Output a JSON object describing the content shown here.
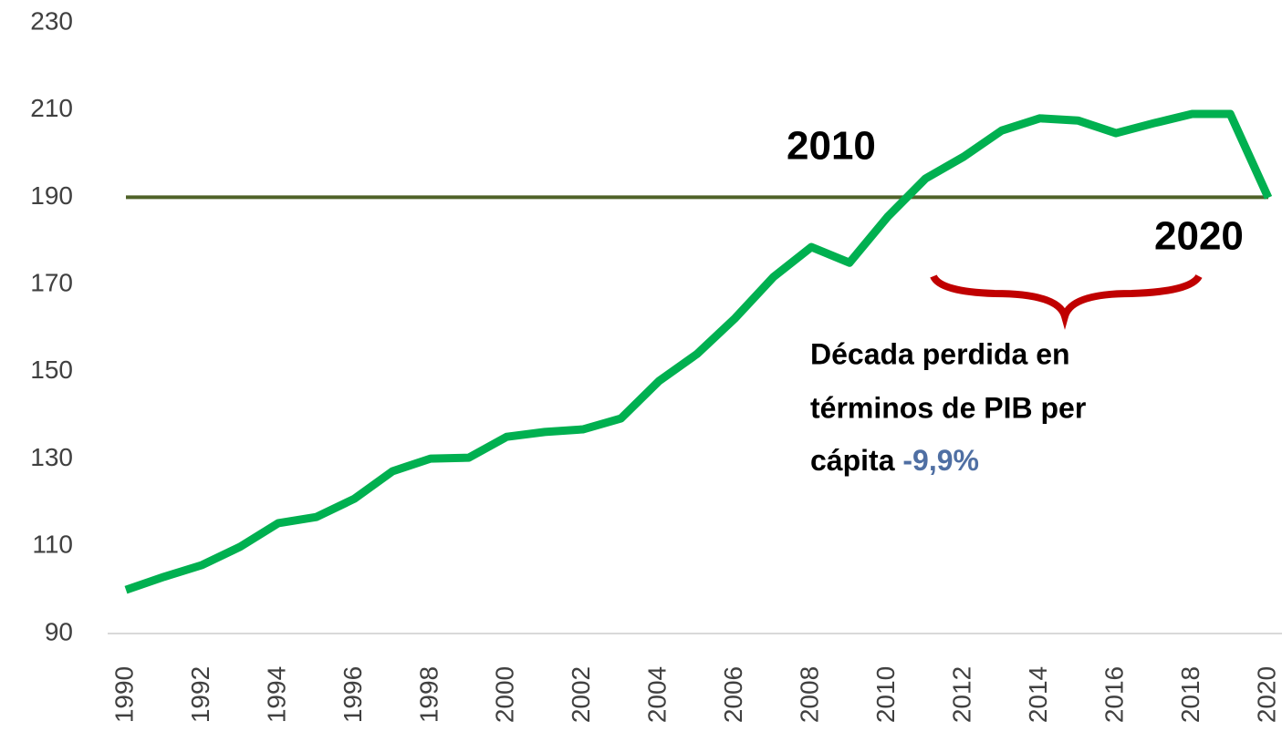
{
  "chart_data": {
    "type": "line",
    "x": [
      1990,
      1991,
      1992,
      1993,
      1994,
      1995,
      1996,
      1997,
      1998,
      1999,
      2000,
      2001,
      2002,
      2003,
      2004,
      2005,
      2006,
      2007,
      2008,
      2009,
      2010,
      2011,
      2012,
      2013,
      2014,
      2015,
      2016,
      2017,
      2018,
      2019,
      2020
    ],
    "series": [
      {
        "color": "#00b050",
        "values": [
          100,
          103,
          105.7,
          109.9,
          115.3,
          116.7,
          120.9,
          127.2,
          130.1,
          130.3,
          135.1,
          136.2,
          136.8,
          139.3,
          147.9,
          154.1,
          162.3,
          171.7,
          178.6,
          175,
          185.5,
          194.3,
          199.3,
          205.3,
          208.1,
          207.6,
          204.7,
          207,
          209.1,
          209.1,
          189.9
        ]
      }
    ],
    "reference_line": {
      "value": 190,
      "color": "#4f6228"
    },
    "xlim": [
      1990,
      2020
    ],
    "xticks": [
      1990,
      1992,
      1994,
      1996,
      1998,
      2000,
      2002,
      2004,
      2006,
      2008,
      2010,
      2012,
      2014,
      2016,
      2018,
      2020
    ],
    "ylim": [
      90,
      230
    ],
    "yticks": [
      90,
      110,
      130,
      150,
      170,
      190,
      210,
      230
    ],
    "annotations": {
      "start_label": "2010",
      "end_label": "2020",
      "note_lines": [
        "Década perdida en",
        "términos de PIB per",
        "cápita"
      ],
      "note_value": "-9,9%",
      "note_value_color": "#4f6fa3"
    }
  }
}
